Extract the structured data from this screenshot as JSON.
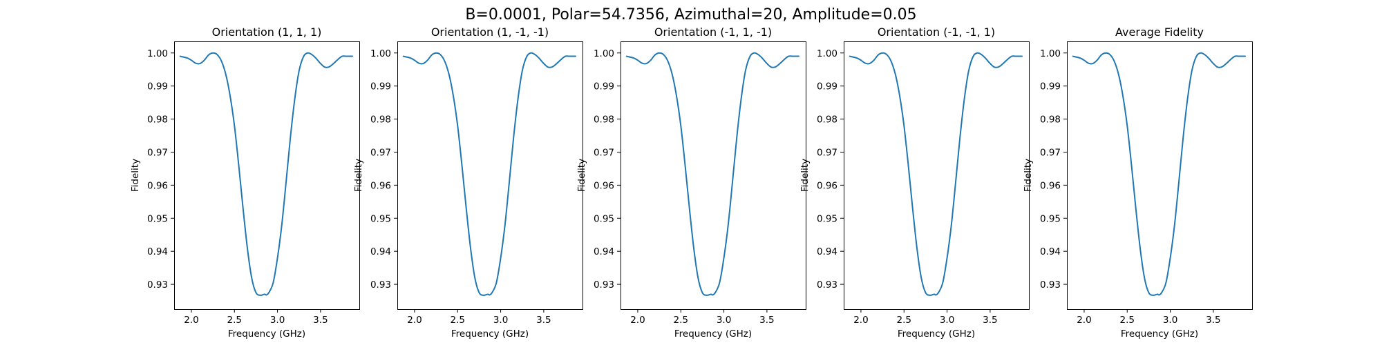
{
  "figure": {
    "title": "B=0.0001, Polar=54.7356, Azimuthal=20, Amplitude=0.05"
  },
  "colors": {
    "line": "#1f77b4"
  },
  "chart_data": [
    {
      "type": "line",
      "title": "Orientation (1, 1, 1)",
      "xlabel": "Frequency (GHz)",
      "ylabel": "Fidelity",
      "xlim": [
        1.8,
        3.95
      ],
      "ylim": [
        0.9225,
        1.0035
      ],
      "xticks": [
        "2.0",
        "2.5",
        "3.0",
        "3.5"
      ],
      "xtick_values": [
        2.0,
        2.5,
        3.0,
        3.5
      ],
      "yticks": [
        "0.93",
        "0.94",
        "0.95",
        "0.96",
        "0.97",
        "0.98",
        "0.99",
        "1.00"
      ],
      "ytick_values": [
        0.93,
        0.94,
        0.95,
        0.96,
        0.97,
        0.98,
        0.99,
        1.0
      ],
      "x": [
        1.87,
        1.95,
        2.0,
        2.05,
        2.1,
        2.15,
        2.2,
        2.25,
        2.3,
        2.35,
        2.4,
        2.45,
        2.5,
        2.55,
        2.6,
        2.65,
        2.7,
        2.75,
        2.8,
        2.85,
        2.87,
        2.9,
        2.95,
        3.0,
        3.05,
        3.1,
        3.15,
        3.2,
        3.25,
        3.3,
        3.35,
        3.4,
        3.45,
        3.5,
        3.55,
        3.6,
        3.65,
        3.7,
        3.75,
        3.8,
        3.87
      ],
      "y": [
        0.999,
        0.9985,
        0.9978,
        0.9969,
        0.9968,
        0.9978,
        0.9994,
        1.0,
        0.9995,
        0.9975,
        0.9935,
        0.987,
        0.978,
        0.966,
        0.953,
        0.941,
        0.932,
        0.9275,
        0.9267,
        0.927,
        0.9268,
        0.9275,
        0.9305,
        0.938,
        0.948,
        0.961,
        0.9745,
        0.986,
        0.9945,
        0.9988,
        1.0,
        0.9995,
        0.9983,
        0.9968,
        0.9957,
        0.9958,
        0.9968,
        0.998,
        0.999,
        0.999,
        0.999
      ]
    },
    {
      "type": "line",
      "title": "Orientation (1, -1, -1)",
      "xlabel": "Frequency (GHz)",
      "ylabel": "Fidelity",
      "xlim": [
        1.8,
        3.95
      ],
      "ylim": [
        0.9225,
        1.0035
      ],
      "xticks": [
        "2.0",
        "2.5",
        "3.0",
        "3.5"
      ],
      "xtick_values": [
        2.0,
        2.5,
        3.0,
        3.5
      ],
      "yticks": [
        "0.93",
        "0.94",
        "0.95",
        "0.96",
        "0.97",
        "0.98",
        "0.99",
        "1.00"
      ],
      "ytick_values": [
        0.93,
        0.94,
        0.95,
        0.96,
        0.97,
        0.98,
        0.99,
        1.0
      ],
      "x": [
        1.87,
        1.95,
        2.0,
        2.05,
        2.1,
        2.15,
        2.2,
        2.25,
        2.3,
        2.35,
        2.4,
        2.45,
        2.5,
        2.55,
        2.6,
        2.65,
        2.7,
        2.75,
        2.8,
        2.85,
        2.87,
        2.9,
        2.95,
        3.0,
        3.05,
        3.1,
        3.15,
        3.2,
        3.25,
        3.3,
        3.35,
        3.4,
        3.45,
        3.5,
        3.55,
        3.6,
        3.65,
        3.7,
        3.75,
        3.8,
        3.87
      ],
      "y": [
        0.999,
        0.9985,
        0.9978,
        0.9969,
        0.9968,
        0.9978,
        0.9994,
        1.0,
        0.9995,
        0.9975,
        0.9935,
        0.987,
        0.978,
        0.966,
        0.953,
        0.941,
        0.932,
        0.9275,
        0.9267,
        0.927,
        0.9268,
        0.9275,
        0.9305,
        0.938,
        0.948,
        0.961,
        0.9745,
        0.986,
        0.9945,
        0.9988,
        1.0,
        0.9995,
        0.9983,
        0.9968,
        0.9957,
        0.9958,
        0.9968,
        0.998,
        0.999,
        0.999,
        0.999
      ]
    },
    {
      "type": "line",
      "title": "Orientation (-1, 1, -1)",
      "xlabel": "Frequency (GHz)",
      "ylabel": "Fidelity",
      "xlim": [
        1.8,
        3.95
      ],
      "ylim": [
        0.9225,
        1.0035
      ],
      "xticks": [
        "2.0",
        "2.5",
        "3.0",
        "3.5"
      ],
      "xtick_values": [
        2.0,
        2.5,
        3.0,
        3.5
      ],
      "yticks": [
        "0.93",
        "0.94",
        "0.95",
        "0.96",
        "0.97",
        "0.98",
        "0.99",
        "1.00"
      ],
      "ytick_values": [
        0.93,
        0.94,
        0.95,
        0.96,
        0.97,
        0.98,
        0.99,
        1.0
      ],
      "x": [
        1.87,
        1.95,
        2.0,
        2.05,
        2.1,
        2.15,
        2.2,
        2.25,
        2.3,
        2.35,
        2.4,
        2.45,
        2.5,
        2.55,
        2.6,
        2.65,
        2.7,
        2.75,
        2.8,
        2.85,
        2.87,
        2.9,
        2.95,
        3.0,
        3.05,
        3.1,
        3.15,
        3.2,
        3.25,
        3.3,
        3.35,
        3.4,
        3.45,
        3.5,
        3.55,
        3.6,
        3.65,
        3.7,
        3.75,
        3.8,
        3.87
      ],
      "y": [
        0.999,
        0.9985,
        0.9978,
        0.9969,
        0.9968,
        0.9978,
        0.9994,
        1.0,
        0.9995,
        0.9975,
        0.9935,
        0.987,
        0.978,
        0.966,
        0.953,
        0.941,
        0.932,
        0.9275,
        0.9267,
        0.927,
        0.9268,
        0.9275,
        0.9305,
        0.938,
        0.948,
        0.961,
        0.9745,
        0.986,
        0.9945,
        0.9988,
        1.0,
        0.9995,
        0.9983,
        0.9968,
        0.9957,
        0.9958,
        0.9968,
        0.998,
        0.999,
        0.999,
        0.999
      ]
    },
    {
      "type": "line",
      "title": "Orientation (-1, -1, 1)",
      "xlabel": "Frequency (GHz)",
      "ylabel": "Fidelity",
      "xlim": [
        1.8,
        3.95
      ],
      "ylim": [
        0.9225,
        1.0035
      ],
      "xticks": [
        "2.0",
        "2.5",
        "3.0",
        "3.5"
      ],
      "xtick_values": [
        2.0,
        2.5,
        3.0,
        3.5
      ],
      "yticks": [
        "0.93",
        "0.94",
        "0.95",
        "0.96",
        "0.97",
        "0.98",
        "0.99",
        "1.00"
      ],
      "ytick_values": [
        0.93,
        0.94,
        0.95,
        0.96,
        0.97,
        0.98,
        0.99,
        1.0
      ],
      "x": [
        1.87,
        1.95,
        2.0,
        2.05,
        2.1,
        2.15,
        2.2,
        2.25,
        2.3,
        2.35,
        2.4,
        2.45,
        2.5,
        2.55,
        2.6,
        2.65,
        2.7,
        2.75,
        2.8,
        2.85,
        2.87,
        2.9,
        2.95,
        3.0,
        3.05,
        3.1,
        3.15,
        3.2,
        3.25,
        3.3,
        3.35,
        3.4,
        3.45,
        3.5,
        3.55,
        3.6,
        3.65,
        3.7,
        3.75,
        3.8,
        3.87
      ],
      "y": [
        0.999,
        0.9985,
        0.9978,
        0.9969,
        0.9968,
        0.9978,
        0.9994,
        1.0,
        0.9995,
        0.9975,
        0.9935,
        0.987,
        0.978,
        0.966,
        0.953,
        0.941,
        0.932,
        0.9275,
        0.9267,
        0.927,
        0.9268,
        0.9275,
        0.9305,
        0.938,
        0.948,
        0.961,
        0.9745,
        0.986,
        0.9945,
        0.9988,
        1.0,
        0.9995,
        0.9983,
        0.9968,
        0.9957,
        0.9958,
        0.9968,
        0.998,
        0.999,
        0.999,
        0.999
      ]
    },
    {
      "type": "line",
      "title": "Average Fidelity",
      "xlabel": "Frequency (GHz)",
      "ylabel": "Fidelity",
      "xlim": [
        1.8,
        3.95
      ],
      "ylim": [
        0.9225,
        1.0035
      ],
      "xticks": [
        "2.0",
        "2.5",
        "3.0",
        "3.5"
      ],
      "xtick_values": [
        2.0,
        2.5,
        3.0,
        3.5
      ],
      "yticks": [
        "0.93",
        "0.94",
        "0.95",
        "0.96",
        "0.97",
        "0.98",
        "0.99",
        "1.00"
      ],
      "ytick_values": [
        0.93,
        0.94,
        0.95,
        0.96,
        0.97,
        0.98,
        0.99,
        1.0
      ],
      "x": [
        1.87,
        1.95,
        2.0,
        2.05,
        2.1,
        2.15,
        2.2,
        2.25,
        2.3,
        2.35,
        2.4,
        2.45,
        2.5,
        2.55,
        2.6,
        2.65,
        2.7,
        2.75,
        2.8,
        2.85,
        2.87,
        2.9,
        2.95,
        3.0,
        3.05,
        3.1,
        3.15,
        3.2,
        3.25,
        3.3,
        3.35,
        3.4,
        3.45,
        3.5,
        3.55,
        3.6,
        3.65,
        3.7,
        3.75,
        3.8,
        3.87
      ],
      "y": [
        0.999,
        0.9985,
        0.9978,
        0.9969,
        0.9968,
        0.9978,
        0.9994,
        1.0,
        0.9995,
        0.9975,
        0.9935,
        0.987,
        0.978,
        0.966,
        0.953,
        0.941,
        0.932,
        0.9275,
        0.9267,
        0.927,
        0.9268,
        0.9275,
        0.9305,
        0.938,
        0.948,
        0.961,
        0.9745,
        0.986,
        0.9945,
        0.9988,
        1.0,
        0.9995,
        0.9983,
        0.9968,
        0.9957,
        0.9958,
        0.9968,
        0.998,
        0.999,
        0.999,
        0.999
      ]
    }
  ]
}
